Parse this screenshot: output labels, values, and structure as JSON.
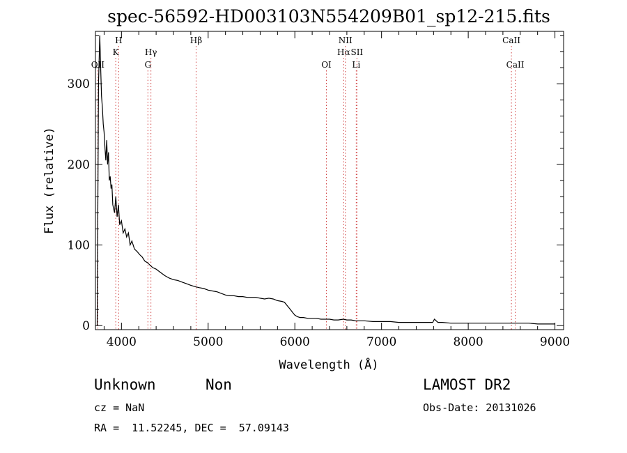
{
  "chart_data": {
    "type": "line",
    "title": "spec-56592-HD003103N554209B01_sp12-215.fits",
    "xlabel": "Wavelength (Å)",
    "ylabel": "Flux (relative)",
    "xlim": [
      3700,
      9100
    ],
    "ylim": [
      -5,
      365
    ],
    "x_ticks": [
      4000,
      5000,
      6000,
      7000,
      8000,
      9000
    ],
    "y_ticks": [
      0,
      100,
      200,
      300
    ],
    "grid": false,
    "series": [
      {
        "x": [
          3720,
          3735,
          3750,
          3760,
          3770,
          3780,
          3790,
          3800,
          3810,
          3820,
          3830,
          3840,
          3850,
          3860,
          3870,
          3880,
          3890,
          3900,
          3910,
          3920,
          3935,
          3950,
          3965,
          3980,
          4000,
          4020,
          4040,
          4060,
          4080,
          4100,
          4120,
          4150,
          4180,
          4210,
          4240,
          4270,
          4300,
          4330,
          4360,
          4400,
          4450,
          4500,
          4550,
          4600,
          4650,
          4700,
          4750,
          4800,
          4860,
          4900,
          4950,
          5000,
          5050,
          5100,
          5150,
          5200,
          5250,
          5300,
          5350,
          5400,
          5450,
          5500,
          5550,
          5600,
          5650,
          5700,
          5750,
          5800,
          5850,
          5880,
          5910,
          5940,
          5970,
          6000,
          6030,
          6060,
          6100,
          6150,
          6200,
          6250,
          6300,
          6350,
          6400,
          6450,
          6500,
          6560,
          6600,
          6650,
          6700,
          6750,
          6800,
          6900,
          7000,
          7100,
          7200,
          7300,
          7400,
          7500,
          7590,
          7610,
          7650,
          7700,
          7800,
          7900,
          8000,
          8100,
          8200,
          8300,
          8400,
          8500,
          8600,
          8700,
          8800,
          8900,
          9000
        ],
        "values": [
          0,
          300,
          360,
          320,
          285,
          270,
          250,
          240,
          220,
          205,
          230,
          200,
          215,
          180,
          185,
          170,
          175,
          150,
          145,
          140,
          160,
          135,
          150,
          125,
          130,
          115,
          120,
          110,
          115,
          100,
          105,
          95,
          92,
          88,
          85,
          80,
          78,
          75,
          72,
          70,
          66,
          62,
          59,
          57,
          56,
          54,
          52,
          50,
          48,
          47,
          46,
          44,
          43,
          42,
          40,
          38,
          37,
          37,
          36,
          36,
          35,
          35,
          35,
          34,
          33,
          34,
          33,
          31,
          30,
          29,
          25,
          21,
          17,
          13,
          11,
          10,
          10,
          9,
          9,
          9,
          8,
          8,
          8,
          7,
          7,
          8,
          7,
          7,
          6,
          6,
          6,
          5,
          5,
          5,
          4,
          4,
          4,
          4,
          4,
          8,
          4,
          4,
          3,
          3,
          3,
          3,
          3,
          3,
          3,
          3,
          3,
          3,
          2,
          2,
          2
        ]
      }
    ],
    "lines": [
      {
        "x": 3727,
        "label": "OII",
        "row": 3
      },
      {
        "x": 3934,
        "label": "K",
        "row": 2
      },
      {
        "x": 3968,
        "label": "H",
        "row": 1
      },
      {
        "x": 4305,
        "label": "G",
        "row": 3
      },
      {
        "x": 4340,
        "label": "Hγ",
        "row": 2
      },
      {
        "x": 4861,
        "label": "Hβ",
        "row": 1
      },
      {
        "x": 6364,
        "label": "OI",
        "row": 3
      },
      {
        "x": 6563,
        "label": "Hα",
        "row": 2
      },
      {
        "x": 6583,
        "label": "NII",
        "row": 1
      },
      {
        "x": 6708,
        "label": "Li",
        "row": 3
      },
      {
        "x": 6716,
        "label": "SII",
        "row": 2
      },
      {
        "x": 8498,
        "label": "CaII",
        "row": 1
      },
      {
        "x": 8542,
        "label": "CaII",
        "row": 3
      }
    ]
  },
  "info": {
    "class": "Unknown",
    "subclass": "Non",
    "survey": "LAMOST DR2",
    "cz": "cz = NaN",
    "obs_date": "Obs-Date: 20131026",
    "coords": "RA =  11.52245, DEC =  57.09143"
  }
}
